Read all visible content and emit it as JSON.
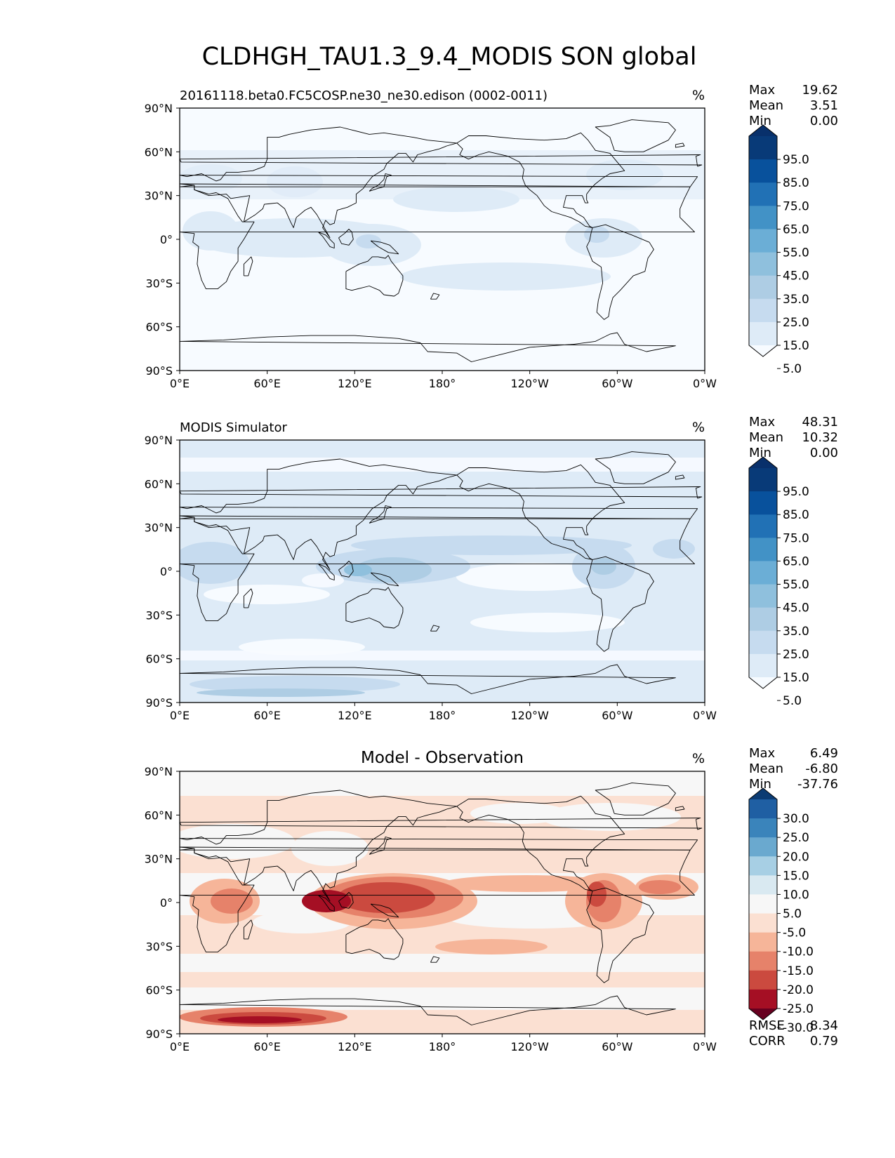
{
  "figure": {
    "title": "CLDHGH_TAU1.3_9.4_MODIS SON global"
  },
  "axes": {
    "lat_ticks": [
      "90°N",
      "60°N",
      "30°N",
      "0°",
      "30°S",
      "60°S",
      "90°S"
    ],
    "lon_ticks": [
      "0°E",
      "60°E",
      "120°E",
      "180°",
      "120°W",
      "60°W",
      "0°W"
    ]
  },
  "panels": [
    {
      "id": "test",
      "left_title": "20161118.beta0.FC5COSP.ne30_ne30.edison (0002-0011)",
      "center_title": "",
      "units": "%",
      "stats": [
        {
          "label": "Max",
          "value": "19.62"
        },
        {
          "label": "Mean",
          "value": "3.51"
        },
        {
          "label": "Min",
          "value": "0.00"
        }
      ],
      "colorbar_colors": [
        "#f7fbff",
        "#deebf7",
        "#c6dbef",
        "#aecde4",
        "#8fc0dd",
        "#6baed6",
        "#4292c6",
        "#2171b5",
        "#08519c",
        "#083a78",
        "#08306b"
      ],
      "colorbar_labels": [
        "95.0",
        "85.0",
        "75.0",
        "65.0",
        "55.0",
        "45.0",
        "35.0",
        "25.0",
        "15.0",
        "5.0"
      ],
      "field": "test"
    },
    {
      "id": "reference",
      "left_title": "MODIS Simulator",
      "center_title": "",
      "units": "%",
      "stats": [
        {
          "label": "Max",
          "value": "48.31"
        },
        {
          "label": "Mean",
          "value": "10.32"
        },
        {
          "label": "Min",
          "value": "0.00"
        }
      ],
      "colorbar_colors": [
        "#f7fbff",
        "#deebf7",
        "#c6dbef",
        "#aecde4",
        "#8fc0dd",
        "#6baed6",
        "#4292c6",
        "#2171b5",
        "#08519c",
        "#083a78",
        "#08306b"
      ],
      "colorbar_labels": [
        "95.0",
        "85.0",
        "75.0",
        "65.0",
        "55.0",
        "45.0",
        "35.0",
        "25.0",
        "15.0",
        "5.0"
      ],
      "field": "ref"
    },
    {
      "id": "diff",
      "left_title": "",
      "center_title": "Model - Observation",
      "units": "%",
      "stats": [
        {
          "label": "Max",
          "value": "6.49"
        },
        {
          "label": "Mean",
          "value": "-6.80"
        },
        {
          "label": "Min",
          "value": "-37.76"
        }
      ],
      "extra_stats": [
        {
          "label": "RMSE",
          "value": "8.34"
        },
        {
          "label": "CORR",
          "value": "0.79"
        }
      ],
      "colorbar_colors": [
        "#67001f",
        "#a50f24",
        "#cb4a3f",
        "#e6826a",
        "#f6b599",
        "#fbe0d2",
        "#f7f7f7",
        "#d9e9f1",
        "#a7cfe4",
        "#6aa9cf",
        "#3a84bb",
        "#1f5fa3",
        "#0b3b73"
      ],
      "colorbar_labels": [
        "30.0",
        "25.0",
        "20.0",
        "15.0",
        "10.0",
        "5.0",
        "-5.0",
        "-10.0",
        "-15.0",
        "-20.0",
        "-25.0",
        "-30.0"
      ],
      "field": "diff"
    }
  ]
}
